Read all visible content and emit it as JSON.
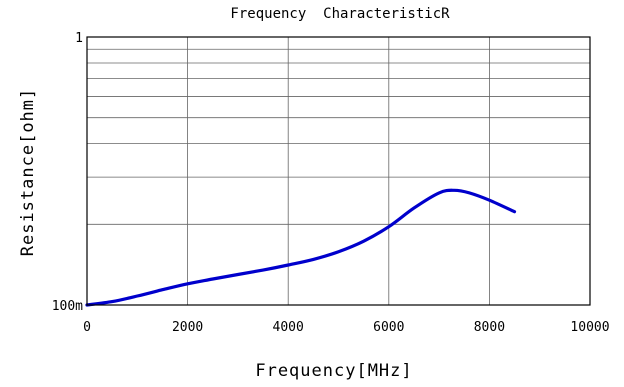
{
  "chart_data": {
    "type": "line",
    "title": "Frequency  CharacteristicR",
    "xlabel": "Frequency[MHz]",
    "ylabel": "Resistance[ohm]",
    "xlim": [
      0,
      10000
    ],
    "ylim": [
      0.1,
      1
    ],
    "yscale": "log",
    "grid": true,
    "x_tick_labels": [
      "0",
      "2000",
      "4000",
      "6000",
      "8000",
      "10000"
    ],
    "y_tick_labels": [
      "100m",
      "1"
    ],
    "series": [
      {
        "color": "#0000cc",
        "x": [
          0,
          500,
          1000,
          1500,
          2000,
          2500,
          3000,
          3500,
          4000,
          4500,
          5000,
          5500,
          6000,
          6500,
          7000,
          7300,
          7600,
          8000,
          8500
        ],
        "y": [
          0.1,
          0.103,
          0.108,
          0.114,
          0.12,
          0.125,
          0.13,
          0.135,
          0.141,
          0.148,
          0.158,
          0.173,
          0.196,
          0.23,
          0.262,
          0.268,
          0.262,
          0.246,
          0.223
        ]
      }
    ]
  }
}
